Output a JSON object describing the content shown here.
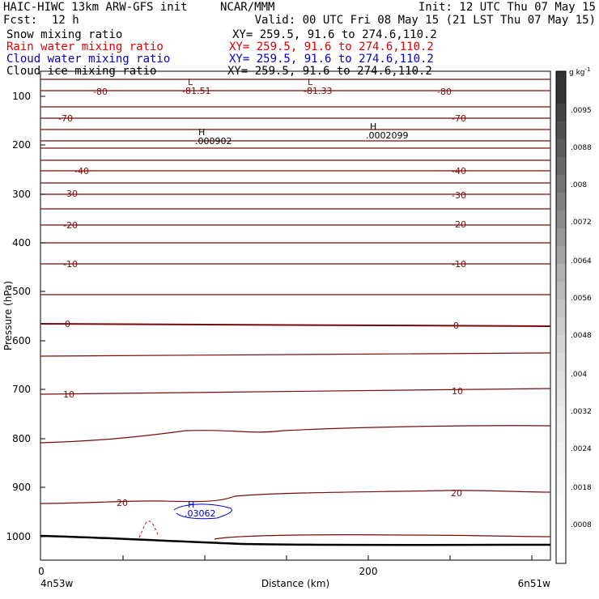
{
  "header": {
    "title": "HAIC-HIWC 13km ARW-GFS init",
    "org": "NCAR/MMM",
    "init": "Init: 12 UTC Thu 07 May 15",
    "fcst_label": "Fcst:",
    "fcst_value": "12 h",
    "valid": "Valid: 00 UTC Fri 08 May 15 (21 LST Thu 07 May 15)"
  },
  "fields": [
    {
      "name": "Snow mixing ratio",
      "xy": "XY= 259.5, 91.6 to 274.6,110.2",
      "color": "#000000"
    },
    {
      "name": "Rain water mixing ratio",
      "xy": "XY= 259.5, 91.6 to 274.6,110.2",
      "color": "#e00000"
    },
    {
      "name": "Cloud water mixing ratio",
      "xy": "XY= 259.5, 91.6 to 274.6,110.2",
      "color": "#0000d0"
    },
    {
      "name": "Cloud ice mixing ratio",
      "xy": "XY= 259.5, 91.6 to 274.6,110.2",
      "color": "#000000"
    }
  ],
  "chart_data": {
    "type": "contour cross-section",
    "xlabel": "Distance (km)",
    "ylabel": "Pressure (hPa)",
    "x_ticks": [
      "0",
      "200"
    ],
    "y_ticks": [
      "100",
      "200",
      "300",
      "400",
      "500",
      "600",
      "700",
      "800",
      "900",
      "1000"
    ],
    "x_end_labels": {
      "left": "4n53w",
      "right": "6n51w"
    },
    "colorbar": {
      "unit": "g kg",
      "unit_exp": "-1",
      "labels": [
        ".0095",
        ".0088",
        ".008",
        ".0072",
        ".0064",
        ".0056",
        ".0048",
        ".004",
        ".0032",
        ".0024",
        ".0018",
        ".0008"
      ]
    },
    "temperature_contour_labels": [
      "-80",
      "-70",
      "-40",
      "-30",
      "-20",
      "-10",
      "0",
      "10",
      "20"
    ],
    "extrema": [
      {
        "kind": "L",
        "value": "-81.51"
      },
      {
        "kind": "L",
        "value": "-81.33"
      },
      {
        "kind": "H",
        "value": ".000902"
      },
      {
        "kind": "H",
        "value": ".0002099"
      },
      {
        "kind": "H",
        "value": ".03062"
      }
    ],
    "line_color": "#7a0a0a"
  }
}
